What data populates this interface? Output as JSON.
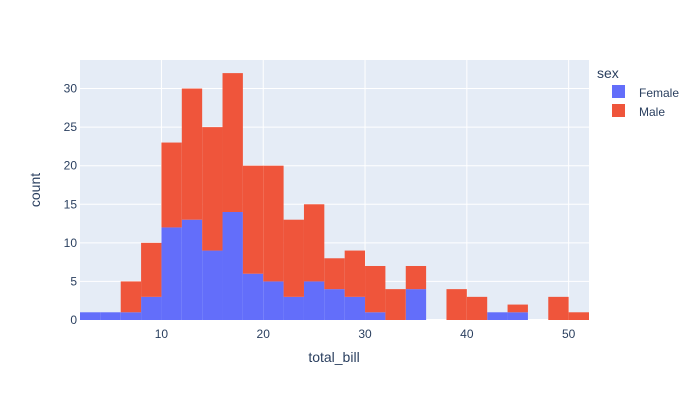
{
  "chart_data": {
    "type": "bar",
    "barmode": "stack",
    "xlabel": "total_bill",
    "ylabel": "count",
    "xlim": [
      2,
      52
    ],
    "ylim": [
      0,
      33.7
    ],
    "xticks": [
      10,
      20,
      30,
      40,
      50
    ],
    "yticks": [
      0,
      5,
      10,
      15,
      20,
      25,
      30
    ],
    "grid": true,
    "legend_title": "sex",
    "legend_position": "top-right",
    "bin_edges": [
      2,
      4,
      6,
      8,
      10,
      12,
      14,
      16,
      18,
      20,
      22,
      24,
      26,
      28,
      30,
      32,
      34,
      36,
      38,
      40,
      42,
      44,
      46,
      48,
      50,
      52
    ],
    "series": [
      {
        "name": "Female",
        "color": "#636efa",
        "values": [
          1,
          1,
          1,
          3,
          12,
          13,
          9,
          14,
          6,
          5,
          3,
          5,
          4,
          3,
          1,
          0,
          4,
          0,
          0,
          0,
          1,
          1,
          0,
          0,
          0
        ]
      },
      {
        "name": "Male",
        "color": "#ef553b",
        "values": [
          0,
          0,
          4,
          7,
          11,
          17,
          16,
          18,
          14,
          15,
          10,
          10,
          4,
          6,
          6,
          4,
          3,
          0,
          4,
          3,
          0,
          1,
          0,
          3,
          1
        ]
      }
    ]
  }
}
